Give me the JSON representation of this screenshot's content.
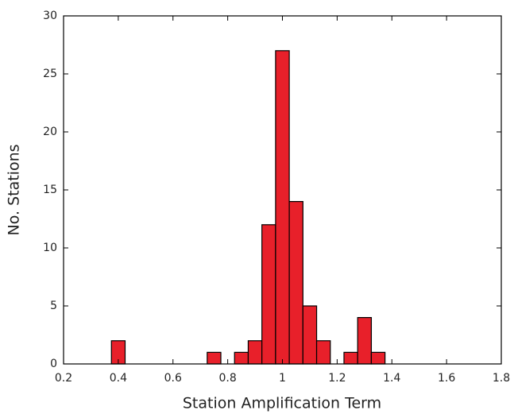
{
  "chart_data": {
    "type": "histogram",
    "xlabel": "Station Amplification Term",
    "ylabel": "No. Stations",
    "bins": [
      0.375,
      0.425,
      0.475,
      0.525,
      0.575,
      0.625,
      0.675,
      0.725,
      0.775,
      0.825,
      0.875,
      0.925,
      0.975,
      1.025,
      1.075,
      1.125,
      1.175,
      1.225,
      1.275,
      1.325,
      1.375
    ],
    "values": [
      2,
      0,
      0,
      0,
      0,
      0,
      0,
      1,
      0,
      1,
      2,
      12,
      27,
      14,
      5,
      2,
      0,
      1,
      4,
      1
    ],
    "color": "#e8202a",
    "xlim": [
      0.2,
      1.8
    ],
    "xticks": [
      0.2,
      0.4,
      0.6,
      0.8,
      1,
      1.2,
      1.4,
      1.6,
      1.8
    ],
    "ylim": [
      0,
      30
    ],
    "yticks": [
      0,
      5,
      10,
      15,
      20,
      25,
      30
    ]
  }
}
